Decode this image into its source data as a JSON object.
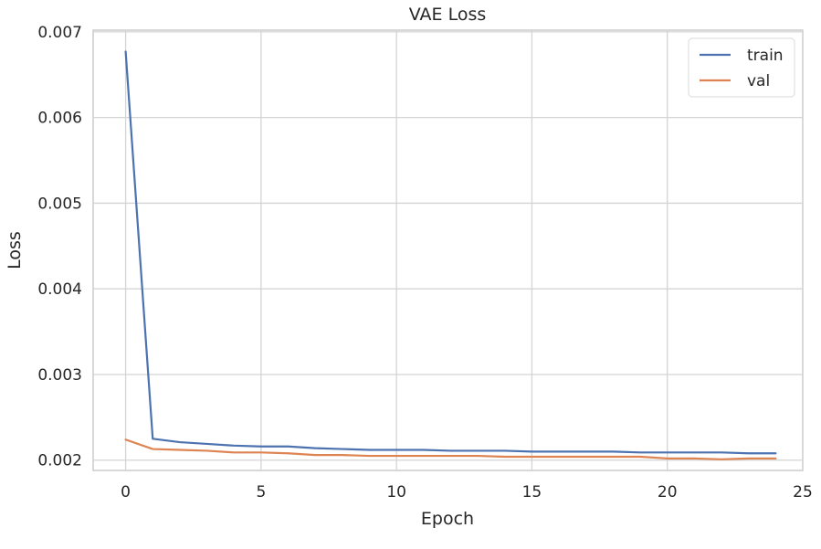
{
  "chart_data": {
    "type": "line",
    "title": "VAE Loss",
    "xlabel": "Epoch",
    "ylabel": "Loss",
    "xlim": [
      -1.2,
      25.0
    ],
    "ylim": [
      0.00188,
      0.00702
    ],
    "xticks": [
      0,
      5,
      10,
      15,
      20,
      25
    ],
    "yticks": [
      0.002,
      0.003,
      0.004,
      0.005,
      0.006,
      0.007
    ],
    "xtick_labels": [
      "0",
      "5",
      "10",
      "15",
      "20",
      "25"
    ],
    "ytick_labels": [
      "0.002",
      "0.003",
      "0.004",
      "0.005",
      "0.006",
      "0.007"
    ],
    "grid": true,
    "legend": "top-right",
    "x": [
      0,
      1,
      2,
      3,
      4,
      5,
      6,
      7,
      8,
      9,
      10,
      11,
      12,
      13,
      14,
      15,
      16,
      17,
      18,
      19,
      20,
      21,
      22,
      23,
      24
    ],
    "series": [
      {
        "name": "train",
        "color": "#4c72b0",
        "values": [
          0.00677,
          0.00225,
          0.00221,
          0.00219,
          0.00217,
          0.00216,
          0.00216,
          0.00214,
          0.00213,
          0.00212,
          0.00212,
          0.00212,
          0.00211,
          0.00211,
          0.00211,
          0.0021,
          0.0021,
          0.0021,
          0.0021,
          0.00209,
          0.00209,
          0.00209,
          0.00209,
          0.00208,
          0.00208
        ]
      },
      {
        "name": "val",
        "color": "#dd8452",
        "values": [
          0.00224,
          0.00213,
          0.00212,
          0.00211,
          0.00209,
          0.00209,
          0.00208,
          0.00206,
          0.00206,
          0.00205,
          0.00205,
          0.00205,
          0.00205,
          0.00205,
          0.00204,
          0.00204,
          0.00204,
          0.00204,
          0.00204,
          0.00204,
          0.00202,
          0.00202,
          0.00201,
          0.00202,
          0.00202
        ]
      }
    ]
  }
}
